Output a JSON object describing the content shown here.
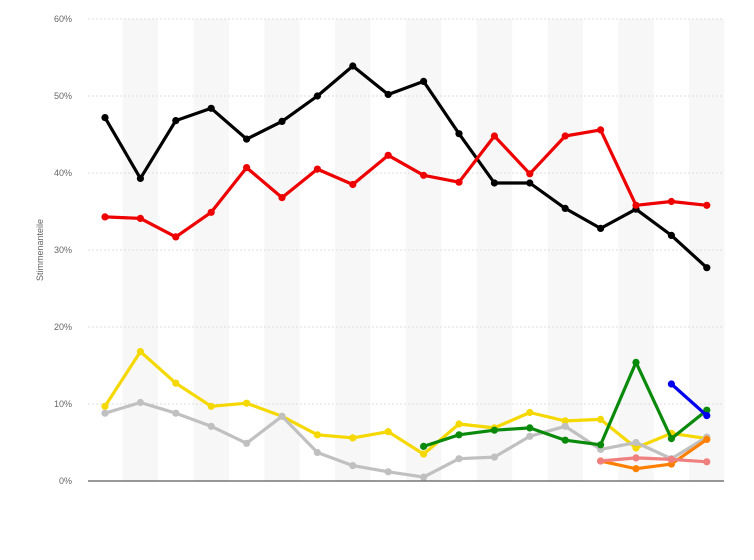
{
  "chart_data": {
    "type": "line",
    "ylabel": "Stimmenanteile",
    "ylim": [
      0,
      60
    ],
    "yticks": [
      "0%",
      "10%",
      "20%",
      "30%",
      "40%",
      "50%",
      "60%"
    ],
    "ytick_values": [
      0,
      10,
      20,
      30,
      40,
      50,
      60
    ],
    "grid": true,
    "legend": "none",
    "x_count": 18,
    "series": [
      {
        "color": "#000000",
        "start": 0,
        "values": [
          47.2,
          39.3,
          46.8,
          48.4,
          44.4,
          46.7,
          50.0,
          53.9,
          50.2,
          51.9,
          45.1,
          38.7,
          38.7,
          35.4,
          32.8,
          35.3,
          31.9,
          27.7
        ]
      },
      {
        "color": "#ee0000",
        "start": 0,
        "values": [
          34.3,
          34.1,
          31.7,
          34.9,
          40.7,
          36.8,
          40.5,
          38.5,
          42.3,
          39.7,
          38.8,
          44.8,
          39.9,
          44.8,
          45.6,
          35.8,
          36.3,
          35.8
        ]
      },
      {
        "color": "#f5d800",
        "start": 0,
        "values": [
          9.7,
          16.8,
          12.7,
          9.7,
          10.1,
          8.4,
          6.0,
          5.6,
          6.4,
          3.5,
          7.4,
          6.9,
          8.9,
          7.8,
          8.0,
          4.3,
          6.2,
          5.5
        ]
      },
      {
        "color": "#c0c0c0",
        "start": 0,
        "values": [
          8.8,
          10.2,
          8.8,
          7.1,
          4.9,
          8.4,
          3.7,
          2.0,
          1.2,
          0.5,
          2.9,
          3.1,
          5.8,
          7.1,
          4.1,
          5.0,
          2.9,
          5.7
        ]
      },
      {
        "color": "#0a8a0a",
        "start": 9,
        "values": [
          4.5,
          6.0,
          6.6,
          6.9,
          5.3,
          4.7,
          15.4,
          5.5,
          9.2
        ]
      },
      {
        "color": "#ff8000",
        "start": 14,
        "values": [
          2.6,
          1.6,
          2.2,
          5.4
        ]
      },
      {
        "color": "#f08080",
        "start": 14,
        "values": [
          2.6,
          3.0,
          2.8,
          2.5
        ]
      },
      {
        "color": "#0000ee",
        "start": 16,
        "values": [
          12.6,
          8.5
        ]
      }
    ]
  }
}
